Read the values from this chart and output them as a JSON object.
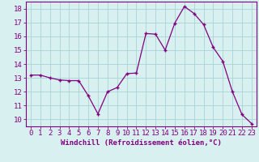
{
  "x": [
    0,
    1,
    2,
    3,
    4,
    5,
    6,
    7,
    8,
    9,
    10,
    11,
    12,
    13,
    14,
    15,
    16,
    17,
    18,
    19,
    20,
    21,
    22,
    23
  ],
  "y": [
    13.2,
    13.2,
    13.0,
    12.85,
    12.8,
    12.8,
    11.7,
    10.4,
    12.0,
    12.3,
    13.3,
    13.35,
    16.2,
    16.15,
    15.0,
    16.95,
    18.15,
    17.65,
    16.85,
    15.2,
    14.2,
    12.0,
    10.35,
    9.7
  ],
  "line_color": "#800080",
  "marker": "+",
  "marker_size": 3,
  "bg_color": "#d8f0f0",
  "grid_color": "#aad4d4",
  "xlabel": "Windchill (Refroidissement éolien,°C)",
  "ylabel_ticks": [
    10,
    11,
    12,
    13,
    14,
    15,
    16,
    17,
    18
  ],
  "ylim": [
    9.5,
    18.5
  ],
  "xlim": [
    -0.5,
    23.5
  ],
  "label_color": "#800080",
  "label_fontsize": 6.5,
  "tick_fontsize": 6.5
}
